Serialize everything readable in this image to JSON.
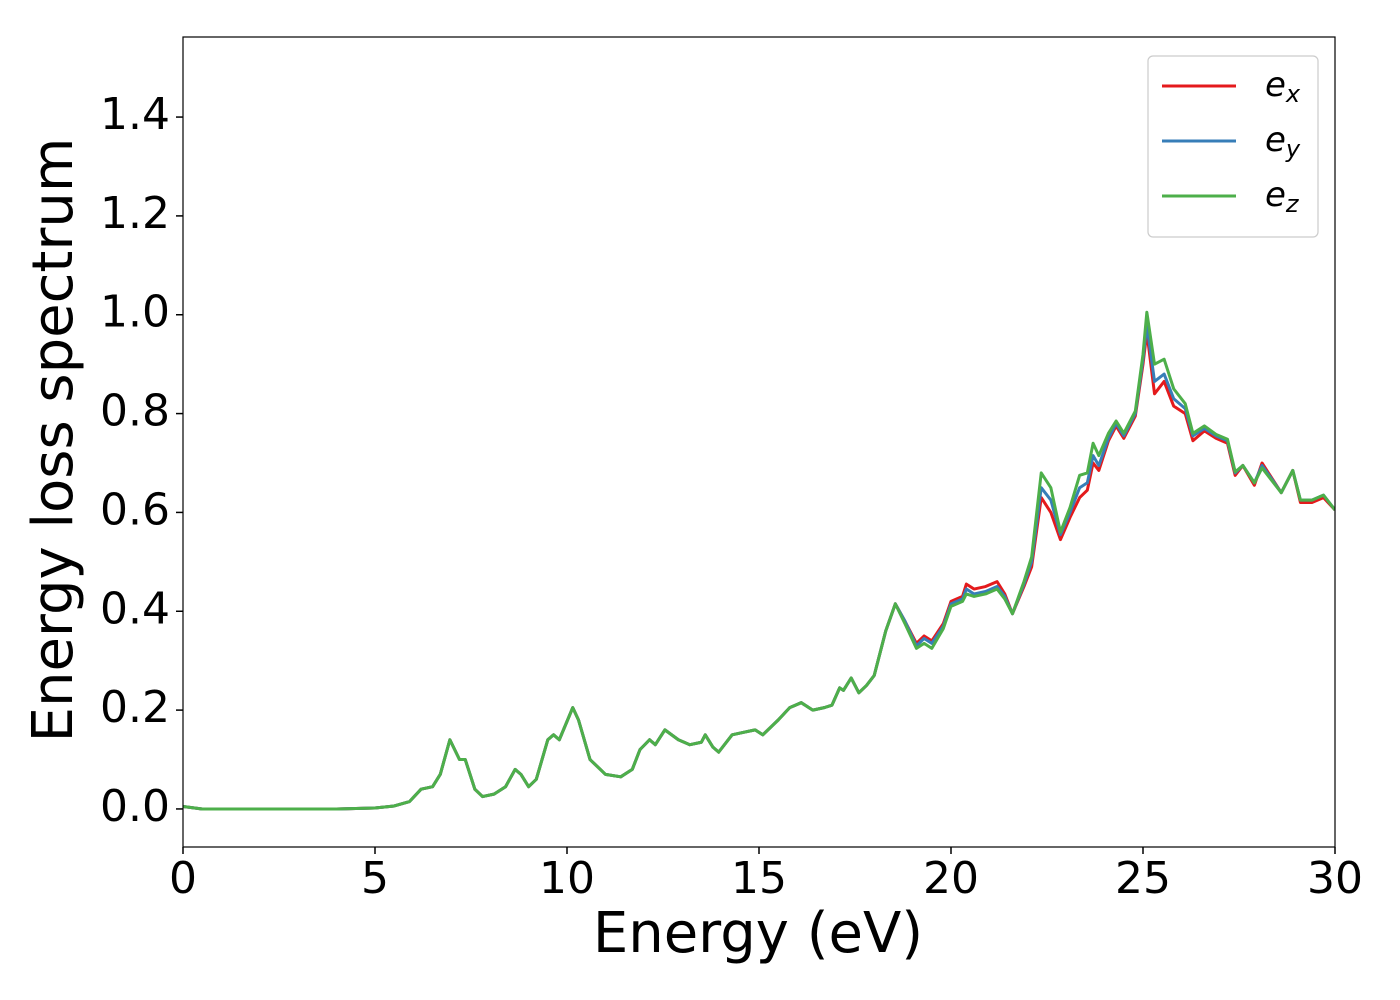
{
  "chart_data": {
    "type": "line",
    "xlabel": "Energy (eV)",
    "ylabel": "Energy loss spectrum",
    "xlim": [
      0,
      30
    ],
    "ylim": [
      -0.077,
      1.562
    ],
    "xticks": [
      0,
      5,
      10,
      15,
      20,
      25,
      30
    ],
    "yticks": [
      {
        "value": 0,
        "label": "0.0"
      },
      0.2,
      0.4,
      0.6,
      0.8,
      {
        "value": 1,
        "label": "1.0"
      },
      1.2,
      1.4
    ],
    "grid": false,
    "legend": "upper right",
    "x": [
      0,
      0.5,
      1,
      2,
      3,
      4,
      5,
      5.5,
      5.9,
      6.2,
      6.5,
      6.7,
      6.95,
      7.2,
      7.35,
      7.6,
      7.8,
      8.1,
      8.4,
      8.65,
      8.8,
      9,
      9.2,
      9.5,
      9.65,
      9.8,
      10.15,
      10.3,
      10.6,
      11,
      11.4,
      11.7,
      11.9,
      12.15,
      12.3,
      12.55,
      12.9,
      13.2,
      13.5,
      13.6,
      13.8,
      13.95,
      14.3,
      14.6,
      14.9,
      15.1,
      15.5,
      15.8,
      16.1,
      16.4,
      16.7,
      16.9,
      17.1,
      17.2,
      17.4,
      17.6,
      17.8,
      18,
      18.3,
      18.55,
      18.8,
      19.1,
      19.3,
      19.5,
      19.8,
      20,
      20.3,
      20.4,
      20.6,
      20.9,
      21.2,
      21.4,
      21.6,
      21.9,
      22.1,
      22.35,
      22.6,
      22.85,
      23.1,
      23.35,
      23.55,
      23.7,
      23.85,
      24.1,
      24.3,
      24.5,
      24.8,
      25,
      25.1,
      25.3,
      25.55,
      25.8,
      26.1,
      26.3,
      26.6,
      26.9,
      27.2,
      27.4,
      27.6,
      27.9,
      28.1,
      28.35,
      28.6,
      28.9,
      29.1,
      29.4,
      29.7,
      30
    ],
    "series": [
      {
        "name": "ex",
        "color": "#e41a1c",
        "values": [
          0.005,
          0,
          0,
          0,
          0,
          0,
          0.002,
          0.006,
          0.015,
          0.04,
          0.045,
          0.07,
          0.14,
          0.1,
          0.1,
          0.04,
          0.025,
          0.03,
          0.045,
          0.08,
          0.07,
          0.045,
          0.06,
          0.14,
          0.15,
          0.14,
          0.205,
          0.18,
          0.1,
          0.07,
          0.065,
          0.08,
          0.12,
          0.14,
          0.13,
          0.16,
          0.14,
          0.13,
          0.135,
          0.15,
          0.125,
          0.115,
          0.15,
          0.155,
          0.16,
          0.15,
          0.18,
          0.205,
          0.215,
          0.2,
          0.205,
          0.21,
          0.245,
          0.24,
          0.265,
          0.235,
          0.25,
          0.27,
          0.36,
          0.415,
          0.38,
          0.335,
          0.35,
          0.34,
          0.375,
          0.42,
          0.43,
          0.455,
          0.445,
          0.45,
          0.46,
          0.435,
          0.395,
          0.45,
          0.49,
          0.63,
          0.6,
          0.545,
          0.59,
          0.63,
          0.645,
          0.7,
          0.685,
          0.745,
          0.775,
          0.75,
          0.795,
          0.9,
          0.965,
          0.84,
          0.865,
          0.815,
          0.8,
          0.745,
          0.765,
          0.75,
          0.74,
          0.675,
          0.695,
          0.655,
          0.7,
          0.67,
          0.64,
          0.685,
          0.62,
          0.62,
          0.63,
          0.605
        ]
      },
      {
        "name": "ey",
        "color": "#377eb8",
        "values": [
          0.005,
          0,
          0,
          0,
          0,
          0,
          0.002,
          0.006,
          0.015,
          0.04,
          0.045,
          0.07,
          0.14,
          0.1,
          0.1,
          0.04,
          0.025,
          0.03,
          0.045,
          0.08,
          0.07,
          0.045,
          0.06,
          0.14,
          0.15,
          0.14,
          0.205,
          0.18,
          0.1,
          0.07,
          0.065,
          0.08,
          0.12,
          0.14,
          0.13,
          0.16,
          0.14,
          0.13,
          0.135,
          0.15,
          0.125,
          0.115,
          0.15,
          0.155,
          0.16,
          0.15,
          0.18,
          0.205,
          0.215,
          0.2,
          0.205,
          0.21,
          0.245,
          0.24,
          0.265,
          0.235,
          0.25,
          0.27,
          0.36,
          0.415,
          0.38,
          0.33,
          0.345,
          0.335,
          0.37,
          0.415,
          0.425,
          0.445,
          0.435,
          0.44,
          0.45,
          0.43,
          0.395,
          0.455,
          0.5,
          0.65,
          0.625,
          0.555,
          0.6,
          0.65,
          0.66,
          0.715,
          0.695,
          0.75,
          0.78,
          0.755,
          0.8,
          0.91,
          0.98,
          0.865,
          0.88,
          0.83,
          0.81,
          0.755,
          0.77,
          0.755,
          0.745,
          0.68,
          0.695,
          0.66,
          0.695,
          0.668,
          0.64,
          0.685,
          0.625,
          0.625,
          0.635,
          0.605
        ]
      },
      {
        "name": "ez",
        "color": "#4daf4a",
        "values": [
          0.005,
          0,
          0,
          0,
          0,
          0,
          0.002,
          0.006,
          0.015,
          0.04,
          0.045,
          0.07,
          0.14,
          0.1,
          0.1,
          0.04,
          0.025,
          0.03,
          0.045,
          0.08,
          0.07,
          0.045,
          0.06,
          0.14,
          0.15,
          0.14,
          0.205,
          0.18,
          0.1,
          0.07,
          0.065,
          0.08,
          0.12,
          0.14,
          0.13,
          0.16,
          0.14,
          0.13,
          0.135,
          0.15,
          0.125,
          0.115,
          0.15,
          0.155,
          0.16,
          0.15,
          0.18,
          0.205,
          0.215,
          0.2,
          0.205,
          0.21,
          0.245,
          0.24,
          0.265,
          0.235,
          0.25,
          0.27,
          0.36,
          0.415,
          0.375,
          0.325,
          0.335,
          0.325,
          0.365,
          0.41,
          0.42,
          0.435,
          0.43,
          0.435,
          0.445,
          0.425,
          0.395,
          0.46,
          0.51,
          0.68,
          0.65,
          0.56,
          0.61,
          0.675,
          0.68,
          0.74,
          0.715,
          0.76,
          0.785,
          0.76,
          0.805,
          0.92,
          1.005,
          0.9,
          0.91,
          0.85,
          0.82,
          0.76,
          0.775,
          0.758,
          0.748,
          0.682,
          0.695,
          0.66,
          0.69,
          0.665,
          0.64,
          0.685,
          0.625,
          0.625,
          0.635,
          0.605
        ]
      }
    ]
  }
}
